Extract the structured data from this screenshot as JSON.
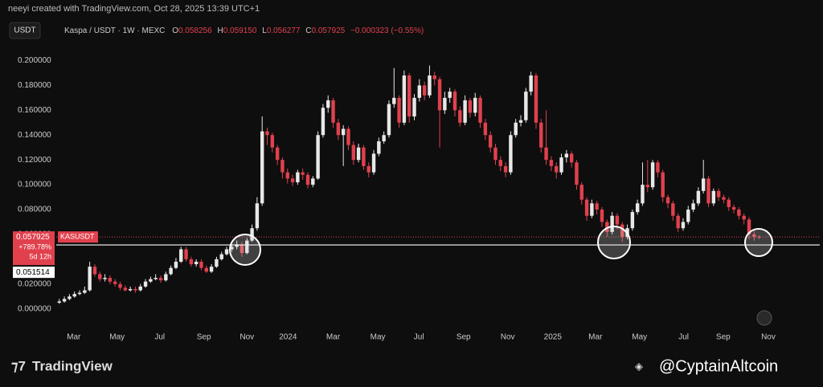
{
  "header": {
    "watermark": "neeyi created with TradingView.com, Oct 28, 2025 13:39 UTC+1",
    "currency_button": "USDT",
    "symbol": "Kaspa / USDT · 1W · MEXC",
    "o_key": "O",
    "o": "0.058256",
    "h_key": "H",
    "h": "0.059150",
    "l_key": "L",
    "l": "0.056277",
    "c_key": "C",
    "c": "0.057925",
    "change": "−0.000323 (−0.55%)"
  },
  "chart_data": {
    "type": "candlestick",
    "up_color": "#e8e8e8",
    "down_color": "#e0414d",
    "ylim": [
      -0.006,
      0.21
    ],
    "yticks": [
      {
        "value": 0,
        "label": "0.000000"
      },
      {
        "value": 0.02,
        "label": "0.020000"
      },
      {
        "value": 0.04,
        "label": "0.040000"
      },
      {
        "value": 0.06,
        "label": "0.060000"
      },
      {
        "value": 0.08,
        "label": "0.080000"
      },
      {
        "value": 0.1,
        "label": "0.100000"
      },
      {
        "value": 0.12,
        "label": "0.120000"
      },
      {
        "value": 0.14,
        "label": "0.140000"
      },
      {
        "value": 0.16,
        "label": "0.160000"
      },
      {
        "value": 0.18,
        "label": "0.180000"
      },
      {
        "value": 0.2,
        "label": "0.200000"
      }
    ],
    "xlim": [
      -0.6,
      144.4
    ],
    "xticks": [
      {
        "value": 2.85,
        "label": "Mar"
      },
      {
        "value": 11.4,
        "label": "May"
      },
      {
        "value": 19.8,
        "label": "Jul"
      },
      {
        "value": 28.5,
        "label": "Sep"
      },
      {
        "value": 37,
        "label": "Nov"
      },
      {
        "value": 45.1,
        "label": "2024"
      },
      {
        "value": 54,
        "label": "Mar"
      },
      {
        "value": 62.8,
        "label": "May"
      },
      {
        "value": 70.9,
        "label": "Jul"
      },
      {
        "value": 79.7,
        "label": "Sep"
      },
      {
        "value": 88.4,
        "label": "Nov"
      },
      {
        "value": 97.3,
        "label": "2025"
      },
      {
        "value": 105.7,
        "label": "Mar"
      },
      {
        "value": 114.4,
        "label": "May"
      },
      {
        "value": 123.1,
        "label": "Jul"
      },
      {
        "value": 130.9,
        "label": "Sep"
      },
      {
        "value": 139.8,
        "label": "Nov"
      }
    ],
    "open": [
      0.005,
      0.006,
      0.008,
      0.01,
      0.012,
      0.013,
      0.015,
      0.034,
      0.028,
      0.024,
      0.025,
      0.022,
      0.02,
      0.017,
      0.015,
      0.016,
      0.015,
      0.018,
      0.022,
      0.024,
      0.025,
      0.023,
      0.028,
      0.033,
      0.038,
      0.048,
      0.04,
      0.036,
      0.038,
      0.033,
      0.03,
      0.034,
      0.04,
      0.044,
      0.048,
      0.05,
      0.052,
      0.045,
      0.055,
      0.065,
      0.085,
      0.143,
      0.14,
      0.13,
      0.12,
      0.11,
      0.105,
      0.102,
      0.11,
      0.108,
      0.1,
      0.105,
      0.14,
      0.162,
      0.168,
      0.15,
      0.14,
      0.145,
      0.132,
      0.12,
      0.13,
      0.115,
      0.11,
      0.125,
      0.135,
      0.14,
      0.165,
      0.17,
      0.15,
      0.188,
      0.155,
      0.17,
      0.18,
      0.172,
      0.188,
      0.185,
      0.16,
      0.17,
      0.175,
      0.16,
      0.15,
      0.168,
      0.158,
      0.17,
      0.15,
      0.14,
      0.13,
      0.12,
      0.115,
      0.11,
      0.14,
      0.15,
      0.152,
      0.175,
      0.188,
      0.15,
      0.13,
      0.12,
      0.115,
      0.11,
      0.122,
      0.125,
      0.118,
      0.1,
      0.088,
      0.075,
      0.085,
      0.08,
      0.07,
      0.062,
      0.075,
      0.068,
      0.058,
      0.065,
      0.078,
      0.085,
      0.1,
      0.098,
      0.118,
      0.11,
      0.09,
      0.085,
      0.075,
      0.065,
      0.07,
      0.08,
      0.085,
      0.095,
      0.105,
      0.085,
      0.095,
      0.09,
      0.088,
      0.082,
      0.08,
      0.075,
      0.072,
      0.06,
      0.0582
    ],
    "high": [
      0.008,
      0.01,
      0.012,
      0.014,
      0.015,
      0.018,
      0.038,
      0.036,
      0.03,
      0.028,
      0.027,
      0.024,
      0.022,
      0.019,
      0.018,
      0.018,
      0.02,
      0.024,
      0.026,
      0.028,
      0.027,
      0.03,
      0.035,
      0.041,
      0.05,
      0.05,
      0.042,
      0.04,
      0.04,
      0.035,
      0.036,
      0.042,
      0.046,
      0.05,
      0.052,
      0.055,
      0.054,
      0.057,
      0.068,
      0.09,
      0.155,
      0.146,
      0.142,
      0.132,
      0.122,
      0.113,
      0.108,
      0.112,
      0.113,
      0.11,
      0.107,
      0.143,
      0.165,
      0.172,
      0.17,
      0.153,
      0.148,
      0.147,
      0.135,
      0.133,
      0.132,
      0.118,
      0.128,
      0.138,
      0.143,
      0.168,
      0.194,
      0.172,
      0.192,
      0.19,
      0.173,
      0.185,
      0.183,
      0.196,
      0.191,
      0.187,
      0.175,
      0.178,
      0.177,
      0.163,
      0.172,
      0.17,
      0.174,
      0.172,
      0.153,
      0.143,
      0.133,
      0.123,
      0.118,
      0.143,
      0.153,
      0.156,
      0.178,
      0.191,
      0.19,
      0.153,
      0.16,
      0.123,
      0.118,
      0.125,
      0.128,
      0.127,
      0.12,
      0.102,
      0.09,
      0.088,
      0.087,
      0.082,
      0.072,
      0.078,
      0.077,
      0.07,
      0.068,
      0.08,
      0.088,
      0.118,
      0.12,
      0.12,
      0.12,
      0.112,
      0.092,
      0.087,
      0.077,
      0.073,
      0.083,
      0.088,
      0.098,
      0.12,
      0.107,
      0.097,
      0.097,
      0.092,
      0.09,
      0.084,
      0.082,
      0.077,
      0.074,
      0.063,
      0.0592
    ],
    "low": [
      0.004,
      0.005,
      0.007,
      0.009,
      0.011,
      0.012,
      0.014,
      0.026,
      0.022,
      0.022,
      0.02,
      0.018,
      0.015,
      0.014,
      0.014,
      0.013,
      0.014,
      0.017,
      0.021,
      0.023,
      0.021,
      0.022,
      0.027,
      0.032,
      0.037,
      0.038,
      0.034,
      0.034,
      0.031,
      0.029,
      0.029,
      0.033,
      0.039,
      0.043,
      0.046,
      0.048,
      0.042,
      0.044,
      0.054,
      0.063,
      0.083,
      0.132,
      0.126,
      0.116,
      0.105,
      0.101,
      0.099,
      0.1,
      0.104,
      0.097,
      0.098,
      0.104,
      0.138,
      0.158,
      0.146,
      0.136,
      0.115,
      0.128,
      0.116,
      0.118,
      0.112,
      0.106,
      0.108,
      0.123,
      0.133,
      0.138,
      0.162,
      0.146,
      0.148,
      0.15,
      0.152,
      0.167,
      0.168,
      0.17,
      0.18,
      0.13,
      0.157,
      0.166,
      0.155,
      0.147,
      0.148,
      0.154,
      0.155,
      0.146,
      0.136,
      0.126,
      0.116,
      0.111,
      0.106,
      0.108,
      0.138,
      0.147,
      0.15,
      0.172,
      0.145,
      0.126,
      0.116,
      0.111,
      0.105,
      0.108,
      0.118,
      0.114,
      0.096,
      0.084,
      0.071,
      0.073,
      0.076,
      0.066,
      0.058,
      0.06,
      0.064,
      0.054,
      0.056,
      0.063,
      0.076,
      0.083,
      0.094,
      0.096,
      0.106,
      0.086,
      0.081,
      0.071,
      0.062,
      0.063,
      0.068,
      0.078,
      0.083,
      0.093,
      0.082,
      0.083,
      0.087,
      0.085,
      0.079,
      0.077,
      0.072,
      0.068,
      0.056,
      0.055,
      0.0563
    ],
    "close": [
      0.006,
      0.008,
      0.01,
      0.012,
      0.013,
      0.015,
      0.034,
      0.028,
      0.024,
      0.025,
      0.022,
      0.02,
      0.017,
      0.015,
      0.016,
      0.015,
      0.018,
      0.022,
      0.024,
      0.025,
      0.023,
      0.028,
      0.033,
      0.038,
      0.048,
      0.04,
      0.036,
      0.038,
      0.033,
      0.03,
      0.034,
      0.04,
      0.044,
      0.048,
      0.05,
      0.052,
      0.045,
      0.055,
      0.065,
      0.085,
      0.143,
      0.14,
      0.13,
      0.12,
      0.11,
      0.105,
      0.102,
      0.11,
      0.108,
      0.1,
      0.105,
      0.14,
      0.162,
      0.168,
      0.15,
      0.14,
      0.145,
      0.132,
      0.12,
      0.13,
      0.115,
      0.11,
      0.125,
      0.135,
      0.14,
      0.165,
      0.17,
      0.15,
      0.188,
      0.155,
      0.17,
      0.18,
      0.172,
      0.188,
      0.185,
      0.16,
      0.17,
      0.175,
      0.16,
      0.15,
      0.168,
      0.158,
      0.17,
      0.15,
      0.14,
      0.13,
      0.12,
      0.115,
      0.11,
      0.14,
      0.15,
      0.152,
      0.175,
      0.188,
      0.15,
      0.13,
      0.12,
      0.115,
      0.11,
      0.122,
      0.125,
      0.118,
      0.1,
      0.088,
      0.075,
      0.085,
      0.08,
      0.07,
      0.062,
      0.075,
      0.068,
      0.058,
      0.065,
      0.078,
      0.085,
      0.1,
      0.098,
      0.118,
      0.11,
      0.09,
      0.085,
      0.075,
      0.065,
      0.07,
      0.08,
      0.085,
      0.095,
      0.105,
      0.085,
      0.095,
      0.09,
      0.088,
      0.082,
      0.08,
      0.075,
      0.072,
      0.06,
      0.0582,
      0.0579
    ],
    "last_price": 0.057925,
    "symbol_label": "KASUSDT",
    "change_label": "+789.78%",
    "countdown": "5d 12h",
    "support_line": 0.051514
  },
  "footer": {
    "brand": "TradingView",
    "handle": "@CyptainAltcoin"
  }
}
